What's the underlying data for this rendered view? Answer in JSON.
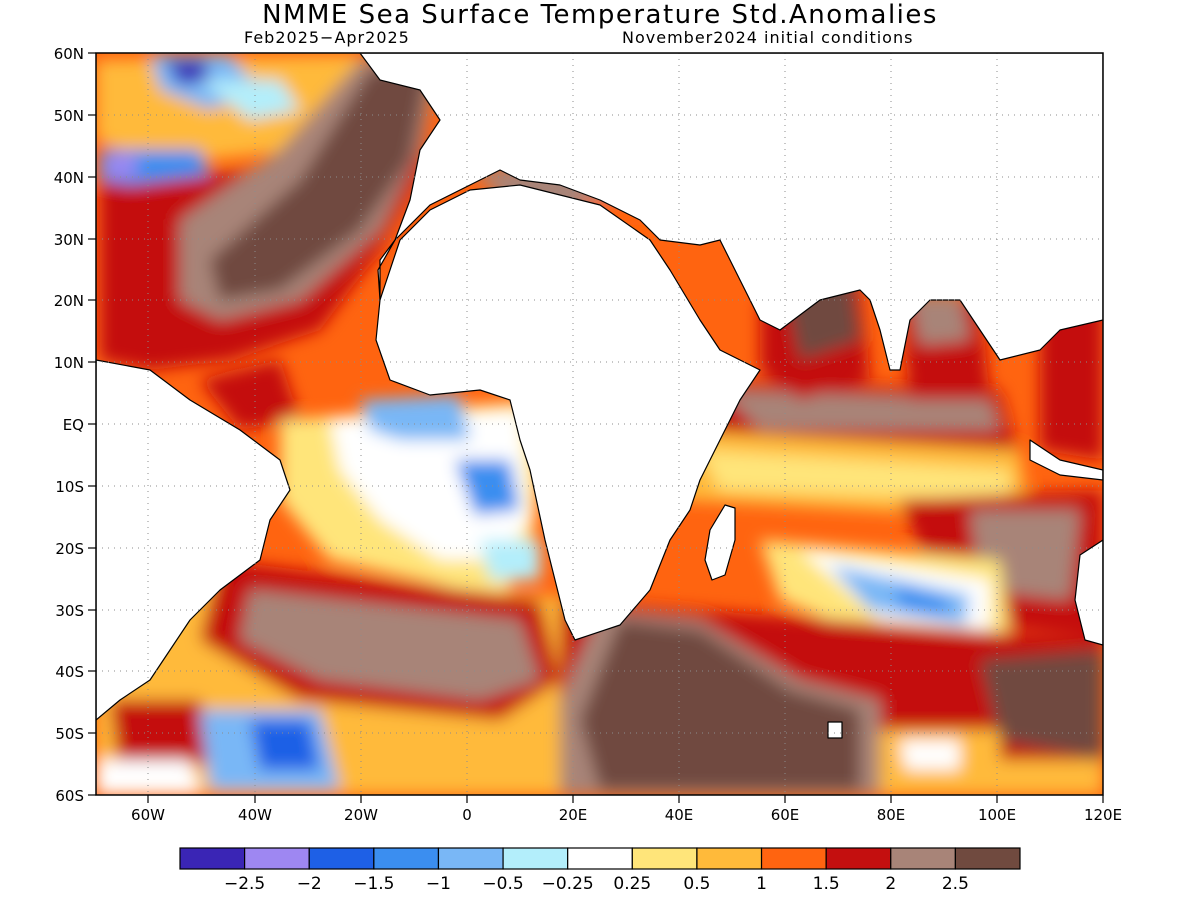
{
  "title": "NMME Sea Surface Temperature Std.Anomalies",
  "period": "Feb2025−Apr2025",
  "initial_conditions": "November2024 initial conditions",
  "latitude_labels": [
    "60N",
    "50N",
    "40N",
    "30N",
    "20N",
    "10N",
    "EQ",
    "10S",
    "20S",
    "30S",
    "40S",
    "50S",
    "60S"
  ],
  "longitude_labels": [
    "60W",
    "40W",
    "20W",
    "0",
    "20E",
    "40E",
    "60E",
    "80E",
    "100E",
    "120E"
  ],
  "colorbar": {
    "colors": [
      "#3a25b5",
      "#9e87f2",
      "#1e60e6",
      "#3b8ef0",
      "#79b7f6",
      "#b3eefb",
      "#ffffff",
      "#ffe57a",
      "#ffba3a",
      "#ff6410",
      "#c40f0f",
      "#a88478",
      "#704a3f"
    ],
    "labels": [
      "−2.5",
      "−2",
      "−1.5",
      "−1",
      "−0.5",
      "−0.25",
      "0.25",
      "0.5",
      "1",
      "1.5",
      "2",
      "2.5"
    ]
  }
}
